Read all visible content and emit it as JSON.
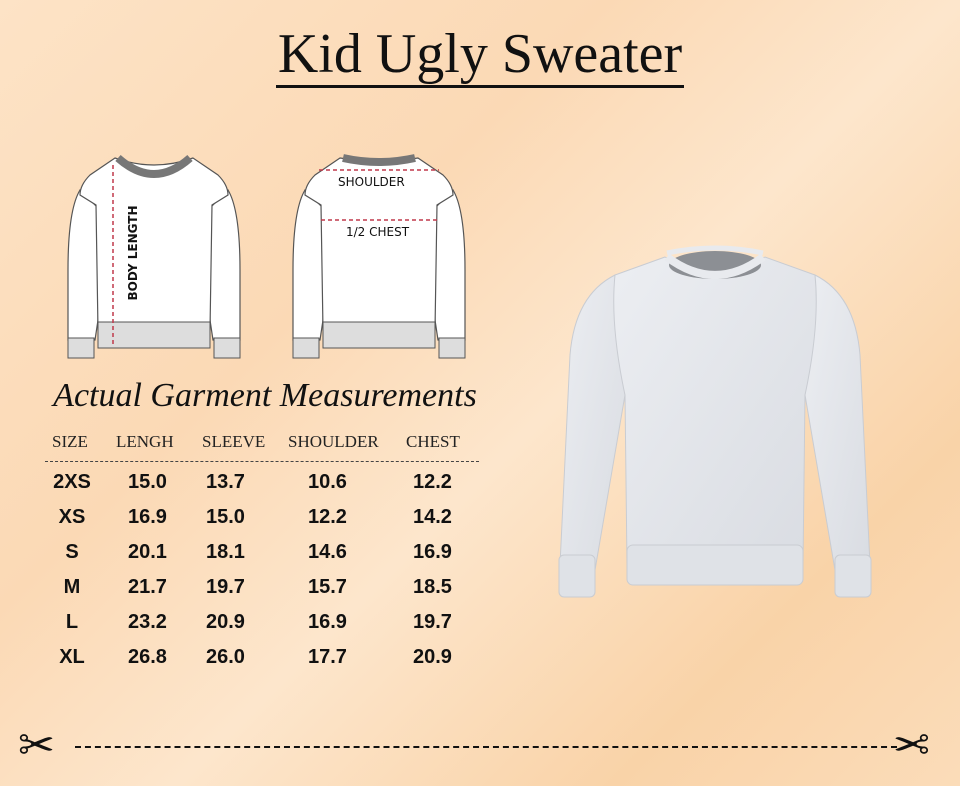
{
  "title": "Kid Ugly Sweater",
  "diagram": {
    "body_length": "BODY LENGTH",
    "shoulder": "SHOULDER",
    "half_chest": "1/2 CHEST"
  },
  "subtitle": "Actual Garment Measurements",
  "table": {
    "headers": [
      "SIZE",
      "LENGH",
      "SLEEVE",
      "SHOULDER",
      "CHEST"
    ],
    "rows": [
      [
        "2XS",
        "15.0",
        "13.7",
        "10.6",
        "12.2"
      ],
      [
        "XS",
        "16.9",
        "15.0",
        "12.2",
        "14.2"
      ],
      [
        "S",
        "20.1",
        "18.1",
        "14.6",
        "16.9"
      ],
      [
        "M",
        "21.7",
        "19.7",
        "15.7",
        "18.5"
      ],
      [
        "L",
        "23.2",
        "20.9",
        "16.9",
        "19.7"
      ],
      [
        "XL",
        "26.8",
        "26.0",
        "17.7",
        "20.9"
      ]
    ]
  },
  "icons": [
    "scissors-icon",
    "scissors-icon"
  ],
  "colors": {
    "background": "#fbdcb9",
    "text": "#111111",
    "measure_line": "#c0394b",
    "sweater": "#e4e7ec"
  }
}
